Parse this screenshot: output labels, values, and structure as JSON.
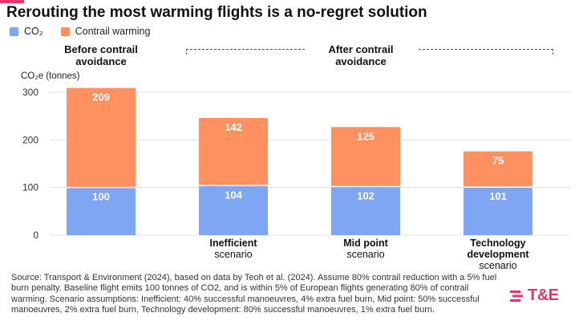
{
  "title": "Rerouting the most warming flights is a no-regret solution",
  "colors": {
    "co2": "#7fa6f2",
    "contrail": "#ff9161",
    "accent": "#e8336b"
  },
  "legend": {
    "co2": "CO₂",
    "contrail": "Contrail warming"
  },
  "headings": {
    "before": "Before contrail\navoidance",
    "after": "After contrail\navoidance"
  },
  "chart_data": {
    "type": "bar",
    "stacked": true,
    "ylabel": "CO₂e (tonnes)",
    "ylim": [
      0,
      300
    ],
    "yticks": [
      0,
      100,
      200,
      300
    ],
    "grid": true,
    "legend_position": "top-left",
    "categories": [
      {
        "bold": "",
        "normal": ""
      },
      {
        "bold": "Inefficient",
        "normal": "scenario"
      },
      {
        "bold": "Mid point",
        "normal": "scenario"
      },
      {
        "bold": "Technology\ndevelopment",
        "normal": "scenario"
      }
    ],
    "series": [
      {
        "name": "CO₂",
        "values": [
          100,
          104,
          102,
          101
        ]
      },
      {
        "name": "Contrail warming",
        "values": [
          209,
          142,
          125,
          75
        ]
      }
    ]
  },
  "source": "Source: Transport & Environment (2024), based on data by Teoh et al. (2024). Assume 80% contrail reduction with a 5% fuel burn penalty. Baseline flight emits 100 tonnes of CO2, and is within 5% of European flights generating 80% of contrail warming. Scenario assumptions: Inefficient: 40% successful manoeuvres, 4% extra fuel burn, Mid point: 50% successful manoeuvres, 2% extra fuel burn, Technology development: 80% successful manoeuvres, 1% extra fuel burn.",
  "logo": {
    "text": "T&E"
  }
}
